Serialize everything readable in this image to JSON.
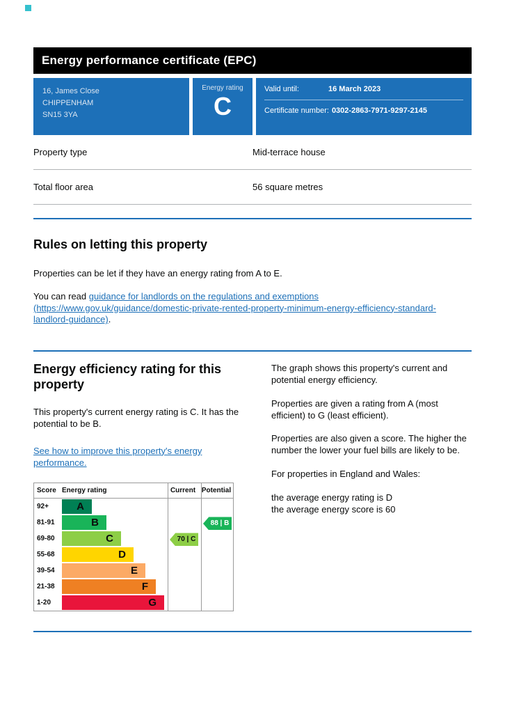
{
  "page": {
    "title": "Energy performance certificate (EPC)"
  },
  "colors": {
    "govuk_blue": "#1d70b8",
    "header_black": "#000000"
  },
  "banner": {
    "address": [
      "16, James Close",
      "CHIPPENHAM",
      "SN15 3YA"
    ],
    "energy_rating_label": "Energy rating",
    "energy_rating_value": "C",
    "valid_until_label": "Valid until:",
    "valid_until_value": "16 March 2023",
    "certificate_number_label": "Certificate number:",
    "certificate_number_value": "0302-2863-7971-9297-2145"
  },
  "summary": {
    "rows": [
      {
        "label": "Property type",
        "value": "Mid-terrace house"
      },
      {
        "label": "Total floor area",
        "value": "56 square metres"
      }
    ]
  },
  "rules": {
    "heading": "Rules on letting this property",
    "intro": "Properties can be let if they have an energy rating from A to E.",
    "read_prefix": "You can read ",
    "link_text": "guidance for landlords on the regulations and exemptions (https://www.gov.uk/guidance/domestic-private-rented-property-minimum-energy-efficiency-standard-landlord-guidance)",
    "read_suffix": "."
  },
  "rating_section": {
    "heading": "Energy efficiency rating for this property",
    "current_text": "This property's current energy rating is C. It has the potential to be B.",
    "improve_link": "See how to improve this property's energy performance.",
    "explainer": [
      "The graph shows this property's current and potential energy efficiency.",
      "Properties are given a rating from A (most efficient) to G (least efficient).",
      "Properties are also given a score. The higher the number the lower your fuel bills are likely to be.",
      "For properties in England and Wales:"
    ],
    "averages": [
      "the average energy rating is D",
      "the average energy score is 60"
    ]
  },
  "chart_data": {
    "type": "bar",
    "title": "Energy efficiency rating",
    "columns": {
      "score": "Score",
      "rating": "Energy rating",
      "current": "Current",
      "potential": "Potential"
    },
    "bands": [
      {
        "score_range": "92+",
        "letter": "A",
        "color": "#008054"
      },
      {
        "score_range": "81-91",
        "letter": "B",
        "color": "#19b459"
      },
      {
        "score_range": "69-80",
        "letter": "C",
        "color": "#8dce46"
      },
      {
        "score_range": "55-68",
        "letter": "D",
        "color": "#ffd500"
      },
      {
        "score_range": "39-54",
        "letter": "E",
        "color": "#fcaa65"
      },
      {
        "score_range": "21-38",
        "letter": "F",
        "color": "#ef8023"
      },
      {
        "score_range": "1-20",
        "letter": "G",
        "color": "#e9153b"
      }
    ],
    "current": {
      "score": 70,
      "letter": "C",
      "label": "70 | C",
      "color": "#8dce46"
    },
    "potential": {
      "score": 88,
      "letter": "B",
      "label": "88 | B",
      "color": "#19b459"
    }
  }
}
